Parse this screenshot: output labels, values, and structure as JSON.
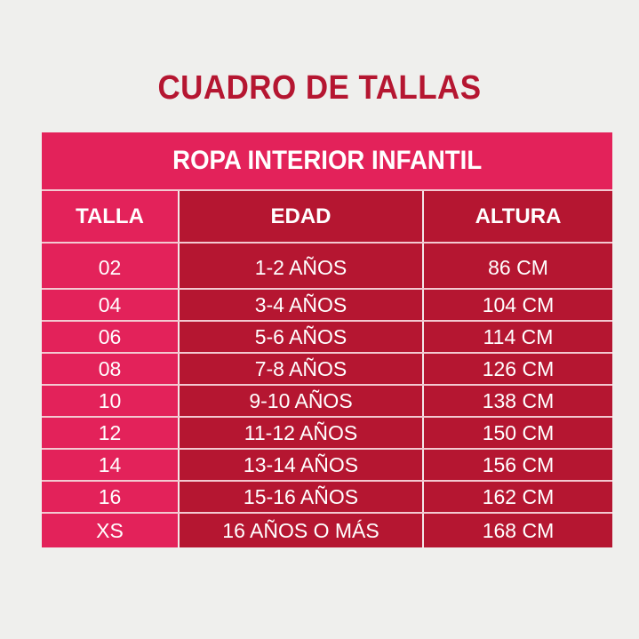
{
  "title": "CUADRO DE TALLAS",
  "table": {
    "caption": "ROPA INTERIOR INFANTIL",
    "headers": [
      "TALLA",
      "EDAD",
      "ALTURA"
    ],
    "rows": [
      [
        "02",
        "1-2 AÑOS",
        "86 CM"
      ],
      [
        "04",
        "3-4 AÑOS",
        "104 CM"
      ],
      [
        "06",
        "5-6 AÑOS",
        "114 CM"
      ],
      [
        "08",
        "7-8 AÑOS",
        "126 CM"
      ],
      [
        "10",
        "9-10 AÑOS",
        "138 CM"
      ],
      [
        "12",
        "11-12 AÑOS",
        "150 CM"
      ],
      [
        "14",
        "13-14 AÑOS",
        "156 CM"
      ],
      [
        "16",
        "15-16 AÑOS",
        "162 CM"
      ],
      [
        "XS",
        "16 AÑOS O MÁS",
        "168 CM"
      ]
    ]
  },
  "colors": {
    "background": "#efefed",
    "title": "#b51631",
    "pink": "#e3225a",
    "crimson": "#b51631",
    "text": "#ffffff"
  },
  "chart_data": {
    "type": "table",
    "title": "CUADRO DE TALLAS",
    "subtitle": "ROPA INTERIOR INFANTIL",
    "columns": [
      "TALLA",
      "EDAD",
      "ALTURA"
    ],
    "rows": [
      [
        "02",
        "1-2 AÑOS",
        "86 CM"
      ],
      [
        "04",
        "3-4 AÑOS",
        "104 CM"
      ],
      [
        "06",
        "5-6 AÑOS",
        "114 CM"
      ],
      [
        "08",
        "7-8 AÑOS",
        "126 CM"
      ],
      [
        "10",
        "9-10 AÑOS",
        "138 CM"
      ],
      [
        "12",
        "11-12 AÑOS",
        "150 CM"
      ],
      [
        "14",
        "13-14 AÑOS",
        "156 CM"
      ],
      [
        "16",
        "15-16 AÑOS",
        "162 CM"
      ],
      [
        "XS",
        "16 AÑOS O MÁS",
        "168 CM"
      ]
    ]
  }
}
